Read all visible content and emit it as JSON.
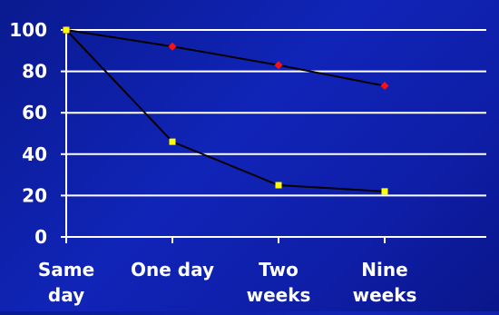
{
  "chart_data": {
    "type": "line",
    "categories": [
      [
        "Same",
        "day"
      ],
      [
        "One day"
      ],
      [
        "Two",
        "weeks"
      ],
      [
        "Nine",
        "weeks"
      ]
    ],
    "y_ticks": [
      0,
      20,
      40,
      60,
      80,
      100
    ],
    "ylim": [
      0,
      100
    ],
    "grid": true,
    "series": [
      {
        "values": [
          100,
          92,
          83,
          73
        ],
        "marker": "diamond",
        "color": "#ff1010"
      },
      {
        "values": [
          100,
          46,
          25,
          22
        ],
        "marker": "square",
        "color": "#ffff00"
      }
    ],
    "line_color": "#000000",
    "grid_color": "#ffffff",
    "background": "#1024b8"
  }
}
